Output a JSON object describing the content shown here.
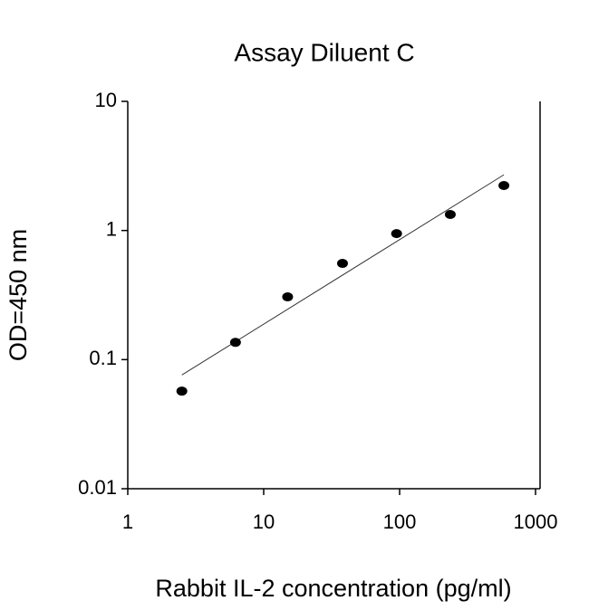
{
  "chart_data": {
    "type": "scatter",
    "title": "Assay Diluent C",
    "x_label": "Rabbit IL-2 concentration (pg/ml)",
    "y_label": "OD=450 nm",
    "x": [
      2.5,
      6.2,
      15,
      38,
      95,
      236,
      585
    ],
    "values": [
      0.057,
      0.136,
      0.306,
      0.556,
      0.946,
      1.33,
      2.23
    ],
    "color": "#000000",
    "trendline": {
      "x": [
        2.5,
        585
      ],
      "values": [
        0.076,
        2.7
      ]
    },
    "x_log": true,
    "y_log": true,
    "xlim": [
      1,
      1000
    ],
    "ylim": [
      0.01,
      10
    ],
    "xticks": [
      1,
      10,
      100,
      1000
    ],
    "yticks": [
      0.01,
      0.1,
      1,
      10
    ]
  }
}
